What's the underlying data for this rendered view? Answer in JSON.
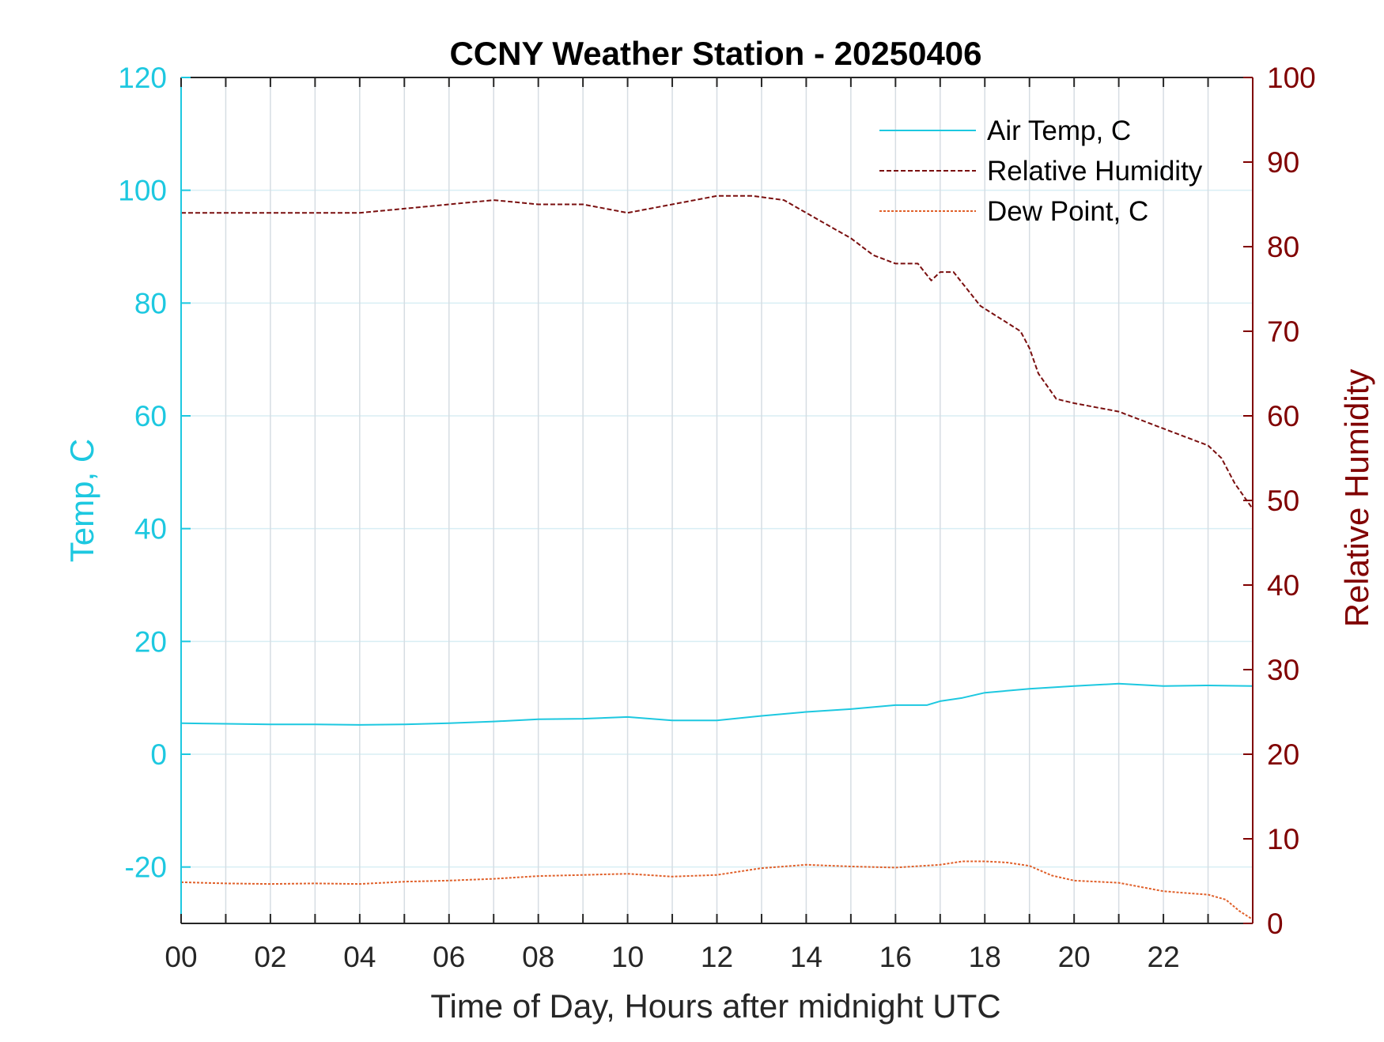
{
  "chart_data": {
    "type": "line",
    "title": "CCNY Weather Station - 20250406",
    "xlabel": "Time of Day, Hours after midnight UTC",
    "ylabel_left": "Temp, C",
    "ylabel_right": "Relative Humidity",
    "xlim": [
      0,
      24
    ],
    "ylim_left": [
      -30,
      120
    ],
    "ylim_right": [
      0,
      100
    ],
    "x_ticks": [
      "00",
      "02",
      "04",
      "06",
      "08",
      "10",
      "12",
      "14",
      "16",
      "18",
      "20",
      "22"
    ],
    "y_left_ticks": [
      "120",
      "100",
      "80",
      "60",
      "40",
      "20",
      "0",
      "-20"
    ],
    "y_right_ticks": [
      "100",
      "90",
      "80",
      "70",
      "60",
      "50",
      "40",
      "30",
      "20",
      "10",
      "0"
    ],
    "grid": true,
    "legend_position": "top-right",
    "colors": {
      "left_axis": "#1dc8e0",
      "right_axis": "#800000",
      "air_temp": "#1dc8e0",
      "humidity": "#7a0f0f",
      "dew_point": "#e0602a",
      "grid": "#d6dde3"
    },
    "series": [
      {
        "name": "Air Temp, C",
        "axis": "left",
        "style": "solid",
        "x": [
          0,
          1,
          2,
          3,
          4,
          5,
          6,
          7,
          8,
          9,
          10,
          11,
          12,
          13,
          14,
          15,
          16,
          16.7,
          17,
          17.5,
          18,
          19,
          20,
          21,
          22,
          23,
          24
        ],
        "y": [
          5.5,
          5.4,
          5.3,
          5.3,
          5.2,
          5.3,
          5.5,
          5.8,
          6.2,
          6.3,
          6.6,
          6.0,
          6.0,
          6.8,
          7.5,
          8.0,
          8.7,
          8.7,
          9.4,
          10.0,
          10.9,
          11.6,
          12.1,
          12.5,
          12.1,
          12.2,
          12.1
        ]
      },
      {
        "name": "Relative Humidity",
        "axis": "right",
        "style": "dashed",
        "x": [
          0,
          1,
          2,
          3,
          4,
          5,
          6,
          7,
          8,
          9,
          10,
          11,
          12,
          12.8,
          13.5,
          14,
          14.5,
          15,
          15.5,
          16,
          16.5,
          16.8,
          17,
          17.3,
          17.6,
          17.9,
          18.2,
          18.5,
          18.8,
          19.0,
          19.2,
          19.4,
          19.6,
          20,
          20.5,
          21,
          21.5,
          22,
          22.5,
          23,
          23.3,
          23.6,
          24
        ],
        "y": [
          84,
          84,
          84,
          84,
          84,
          84.5,
          85,
          85.5,
          85,
          85,
          84,
          85,
          86,
          86,
          85.5,
          84,
          82.5,
          81,
          79,
          78,
          78,
          76,
          77,
          77,
          75,
          73,
          72,
          71,
          70,
          68,
          65,
          63.5,
          62,
          61.5,
          61,
          60.5,
          59.5,
          58.5,
          57.5,
          56.5,
          55,
          52,
          49
        ]
      },
      {
        "name": "Dew Point, C",
        "axis": "left",
        "style": "dashed",
        "x": [
          0,
          1,
          2,
          3,
          4,
          5,
          6,
          7,
          8,
          9,
          10,
          11,
          12,
          13,
          14,
          15,
          16,
          17,
          17.5,
          18,
          18.5,
          19,
          19.5,
          20,
          21,
          22,
          22.5,
          23,
          23.4,
          23.7,
          24
        ],
        "y": [
          -22.7,
          -22.9,
          -23.0,
          -22.9,
          -23.0,
          -22.6,
          -22.4,
          -22.1,
          -21.6,
          -21.4,
          -21.2,
          -21.7,
          -21.4,
          -20.2,
          -19.6,
          -19.9,
          -20.1,
          -19.6,
          -19.0,
          -19.0,
          -19.2,
          -19.8,
          -21.5,
          -22.4,
          -22.8,
          -24.3,
          -24.6,
          -24.9,
          -25.8,
          -27.8,
          -29.3
        ]
      }
    ]
  }
}
